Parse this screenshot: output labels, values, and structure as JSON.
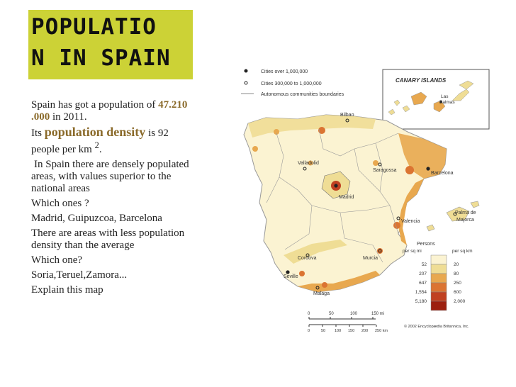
{
  "slide": {
    "title_line1": "Populatio",
    "title_line2": "n in Spain",
    "p1_a": "Spain has   got  a population of  ",
    "p1_num": "47.210 .000",
    "p1_b": " in  2011.",
    "p2_a": "Its  ",
    "p2_bold": "population  density",
    "p2_b": "  is 92  people per km ",
    "p2_sup": "2",
    "p2_c": ".",
    "p3": "In Spain  there  are   densely populated  areas, with  values superior  to the  national areas",
    "q1": "Which ones ?",
    "a1": "Madrid, Guipuzcoa, Barcelona",
    "p4": "There  are areas  with  less population density   than the average",
    "q2": "Which one?",
    "a2": "Soria,Teruel,Zamora...",
    "p5": "Explain  this  map"
  },
  "map": {
    "legend_cities_1m": "Cities over 1,000,000",
    "legend_cities_300k": "Cities 300,000 to 1,000,000",
    "legend_boundaries": "Autonomous communities boundaries",
    "inset_title": "CANARY ISLANDS",
    "inset_city_1": "Las",
    "inset_city_2": "Palmas",
    "cities": {
      "bilbao": "Bilbao",
      "valladolid": "Valladolid",
      "zaragoza": "Saragossa",
      "barcelona": "Barcelona",
      "madrid": "Madrid",
      "valencia": "Valencia",
      "palma_1": "Palma de",
      "palma_2": "Majorca",
      "cordoba": "Cordova",
      "murcia": "Murcia",
      "seville": "Seville",
      "malaga": "Malaga"
    },
    "density_title": "Persons",
    "density_col_mi": "per sq mi",
    "density_col_km": "per sq km",
    "density_mi": [
      "52",
      "207",
      "647",
      "1,554",
      "5,180"
    ],
    "density_km": [
      "20",
      "80",
      "250",
      "600",
      "2,000"
    ],
    "density_colors": [
      "#fbf3d2",
      "#efdd95",
      "#e8a84f",
      "#db7432",
      "#c04020",
      "#9c2010"
    ],
    "scale_mi": [
      "0",
      "50",
      "100",
      "150 mi"
    ],
    "scale_km": [
      "0",
      "50",
      "100",
      "150",
      "200",
      "250 km"
    ],
    "credit": "© 2002 Encyclopædia Britannica, Inc."
  }
}
